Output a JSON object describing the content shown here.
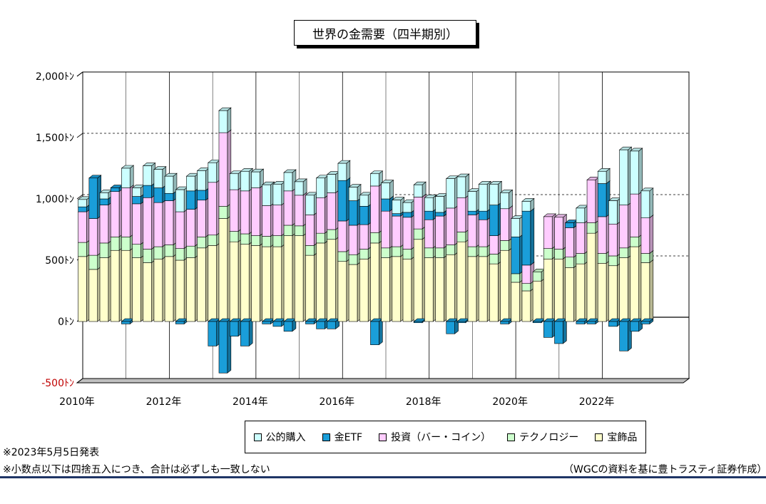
{
  "title": "世界の金需要（四半期別）",
  "colors": {
    "jewelry": "#ffffcc",
    "tech": "#ccffcc",
    "invest": "#ffccff",
    "etf": "#1a9ed9",
    "cb": "#ccffff"
  },
  "legend": [
    {
      "key": "cb",
      "label": "公的購入"
    },
    {
      "key": "etf",
      "label": "金ETF"
    },
    {
      "key": "invest",
      "label": "投資（バー・コイン）"
    },
    {
      "key": "tech",
      "label": "テクノロジー"
    },
    {
      "key": "jewelry",
      "label": "宝飾品"
    }
  ],
  "notes": {
    "release": "※2023年5月5日発表",
    "rounding": "※小数点以下は四捨五入につき、合計は必ずしも一致しない",
    "source": "（WGCの資料を基に豊トラスティ証券作成）"
  },
  "chart_data": {
    "type": "bar",
    "stacked": true,
    "ylim": [
      -500,
      2000
    ],
    "y_ticks": [
      -500,
      0,
      500,
      1000,
      1500,
      2000
    ],
    "y_tick_labels": [
      "-500ﾄﾝ",
      "0ﾄﾝ",
      "500ﾄﾝ",
      "1,000ﾄﾝ",
      "1,500ﾄﾝ",
      "2,000ﾄﾝ"
    ],
    "x_tick_labels": [
      "2010年",
      "2012年",
      "2014年",
      "2016年",
      "2018年",
      "2020年",
      "2022年"
    ],
    "grid": "horizontal-dashed-and-yearly-vertical",
    "categories": [
      "2010Q1",
      "2010Q2",
      "2010Q3",
      "2010Q4",
      "2011Q1",
      "2011Q2",
      "2011Q3",
      "2011Q4",
      "2012Q1",
      "2012Q2",
      "2012Q3",
      "2012Q4",
      "2013Q1",
      "2013Q2",
      "2013Q3",
      "2013Q4",
      "2014Q1",
      "2014Q2",
      "2014Q3",
      "2014Q4",
      "2015Q1",
      "2015Q2",
      "2015Q3",
      "2015Q4",
      "2016Q1",
      "2016Q2",
      "2016Q3",
      "2016Q4",
      "2017Q1",
      "2017Q2",
      "2017Q3",
      "2017Q4",
      "2018Q1",
      "2018Q2",
      "2018Q3",
      "2018Q4",
      "2019Q1",
      "2019Q2",
      "2019Q3",
      "2019Q4",
      "2020Q1",
      "2020Q2",
      "2020Q3",
      "2020Q4",
      "2021Q1",
      "2021Q2",
      "2021Q3",
      "2021Q4",
      "2022Q1",
      "2022Q2",
      "2022Q3",
      "2022Q4",
      "2023Q1"
    ],
    "series": [
      {
        "name": "宝飾品",
        "key": "jewelry",
        "values": [
          530,
          425,
          520,
          580,
          580,
          520,
          480,
          510,
          530,
          500,
          520,
          600,
          620,
          840,
          650,
          630,
          620,
          610,
          610,
          700,
          700,
          540,
          640,
          670,
          490,
          465,
          510,
          640,
          520,
          530,
          510,
          670,
          520,
          520,
          545,
          650,
          530,
          530,
          470,
          580,
          320,
          250,
          330,
          510,
          510,
          440,
          470,
          720,
          475,
          455,
          520,
          610,
          480
        ]
      },
      {
        "name": "テクノロジー",
        "key": "tech",
        "values": [
          115,
          115,
          120,
          110,
          110,
          110,
          110,
          100,
          95,
          95,
          95,
          90,
          85,
          100,
          85,
          85,
          80,
          85,
          90,
          85,
          80,
          80,
          80,
          80,
          80,
          80,
          80,
          85,
          80,
          80,
          80,
          85,
          80,
          80,
          80,
          80,
          80,
          80,
          80,
          80,
          70,
          60,
          75,
          85,
          80,
          85,
          85,
          85,
          80,
          80,
          80,
          80,
          75
        ]
      },
      {
        "name": "投資（バー・コイン）",
        "key": "invest",
        "values": [
          250,
          300,
          310,
          370,
          400,
          330,
          420,
          360,
          360,
          300,
          300,
          300,
          430,
          600,
          340,
          350,
          390,
          250,
          250,
          280,
          250,
          250,
          290,
          300,
          250,
          240,
          200,
          380,
          300,
          250,
          260,
          260,
          230,
          260,
          300,
          280,
          260,
          220,
          150,
          260,
          0,
          150,
          0,
          260,
          260,
          240,
          250,
          350,
          300,
          260,
          350,
          350,
          290
        ]
      },
      {
        "name": "金ETF",
        "key": "etf",
        "values": [
          40,
          330,
          50,
          30,
          -20,
          60,
          100,
          120,
          60,
          -20,
          150,
          80,
          -200,
          -420,
          -120,
          -200,
          0,
          -20,
          -40,
          -80,
          0,
          -20,
          -60,
          -60,
          330,
          200,
          150,
          -190,
          100,
          20,
          40,
          -10,
          70,
          30,
          -100,
          -10,
          30,
          70,
          250,
          -20,
          300,
          440,
          -10,
          -130,
          -180,
          40,
          -20,
          -20,
          270,
          -40,
          -240,
          -80,
          -20
        ]
      },
      {
        "name": "公的購入",
        "key": "cb",
        "values": [
          60,
          0,
          50,
          0,
          160,
          70,
          160,
          150,
          140,
          180,
          120,
          160,
          160,
          180,
          130,
          160,
          130,
          170,
          170,
          150,
          110,
          160,
          160,
          150,
          140,
          110,
          90,
          100,
          130,
          110,
          80,
          100,
          110,
          130,
          240,
          170,
          160,
          220,
          170,
          130,
          150,
          80,
          0,
          0,
          0,
          0,
          120,
          0,
          100,
          190,
          450,
          350,
          220
        ]
      }
    ]
  }
}
